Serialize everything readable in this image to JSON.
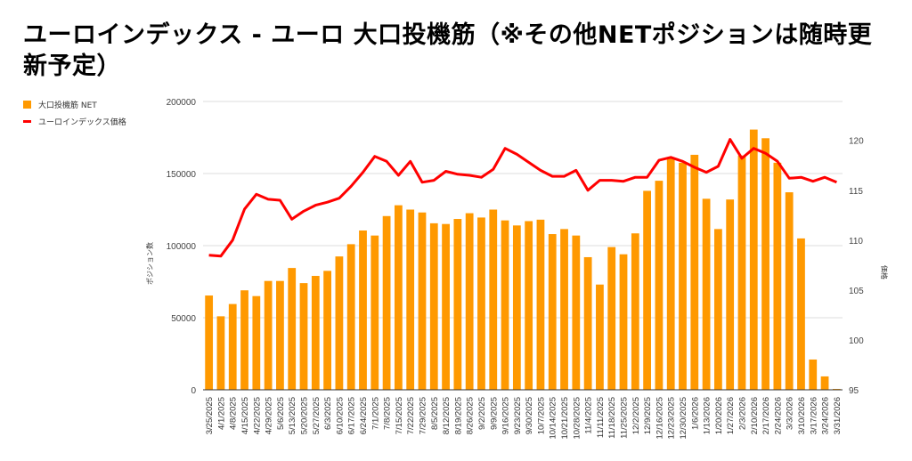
{
  "chart_data": {
    "type": "bar+line",
    "title": "ユーロインデックス - ユーロ 大口投機筋（※その他NETポジションは随時更新予定）",
    "legend_position": "top-left",
    "xlabel": "",
    "ylabel_left": "ポジション数",
    "ylabel_right": "価格",
    "ylim_left": [
      0,
      200000
    ],
    "yticks_left": [
      "0",
      "50000",
      "100000",
      "150000",
      "200000"
    ],
    "ylim_right": [
      95,
      123.9
    ],
    "yticks_right": [
      "95",
      "100",
      "105",
      "110",
      "115",
      "120"
    ],
    "grid": true,
    "categories": [
      "3/25/2025",
      "4/1/2025",
      "4/8/2025",
      "4/15/2025",
      "4/22/2025",
      "4/29/2025",
      "5/6/2025",
      "5/13/2025",
      "5/20/2025",
      "5/27/2025",
      "6/3/2025",
      "6/10/2025",
      "6/17/2025",
      "6/24/2025",
      "7/1/2025",
      "7/8/2025",
      "7/15/2025",
      "7/22/2025",
      "7/29/2025",
      "8/5/2025",
      "8/12/2025",
      "8/19/2025",
      "8/26/2025",
      "9/2/2025",
      "9/9/2025",
      "9/16/2025",
      "9/23/2025",
      "9/30/2025",
      "10/7/2025",
      "10/14/2025",
      "10/21/2025",
      "10/28/2025",
      "11/4/2025",
      "11/11/2025",
      "11/18/2025",
      "11/25/2025",
      "12/2/2025",
      "12/9/2025",
      "12/16/2025",
      "12/23/2025",
      "12/30/2025",
      "1/6/2026",
      "1/13/2026",
      "1/20/2026",
      "1/27/2026",
      "2/3/2026",
      "2/10/2026",
      "2/17/2026",
      "2/24/2026",
      "3/3/2026",
      "3/10/2026",
      "3/17/2026",
      "3/24/2026",
      "3/31/2026"
    ],
    "series": [
      {
        "name": "大口投機筋  NET",
        "type": "bar",
        "axis": "left",
        "color": "#ff9900",
        "values": [
          65400,
          51000,
          59500,
          69000,
          65000,
          75500,
          75500,
          84500,
          74000,
          79000,
          82500,
          92500,
          101000,
          110500,
          107000,
          120500,
          128000,
          125000,
          123000,
          115500,
          115000,
          118500,
          122500,
          119500,
          125000,
          117500,
          114000,
          117000,
          118000,
          108000,
          111500,
          107000,
          92000,
          73000,
          99000,
          94000,
          108500,
          138000,
          145000,
          160500,
          157500,
          163000,
          132500,
          111500,
          132000,
          162500,
          180500,
          174500,
          157500,
          137000,
          105000,
          21000,
          9300,
          600
        ]
      },
      {
        "name": "ユーロインデックス価格",
        "type": "line",
        "axis": "right",
        "color": "#ff0000",
        "values": [
          108.5,
          108.4,
          110.0,
          113.1,
          114.6,
          114.1,
          114.0,
          112.1,
          112.9,
          113.5,
          113.8,
          114.2,
          115.4,
          116.8,
          118.4,
          117.9,
          116.5,
          117.9,
          115.8,
          116.0,
          116.9,
          116.6,
          116.5,
          116.3,
          117.1,
          119.2,
          118.6,
          117.8,
          117.0,
          116.4,
          116.4,
          117.0,
          115.0,
          116.0,
          116.0,
          115.9,
          116.3,
          116.3,
          118.0,
          118.3,
          117.9,
          117.3,
          116.8,
          117.4,
          120.1,
          118.2,
          119.2,
          118.7,
          117.9,
          116.2,
          116.3,
          115.9,
          116.3,
          115.8
        ]
      }
    ]
  }
}
